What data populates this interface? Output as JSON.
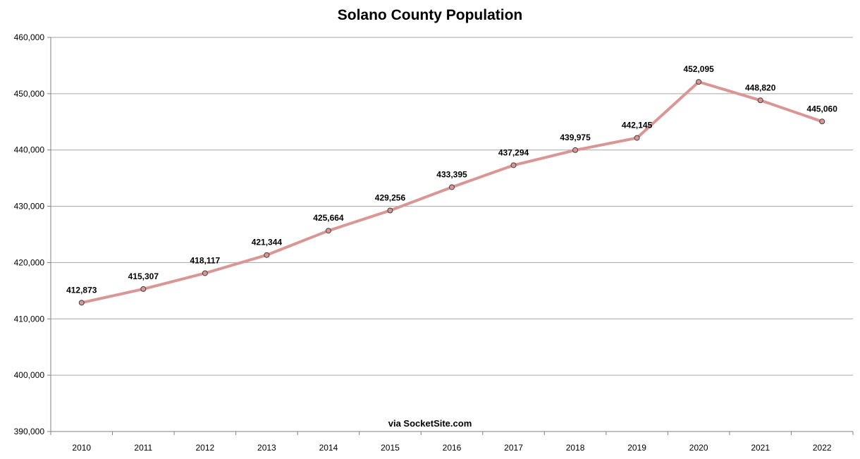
{
  "chart_data": {
    "type": "line",
    "title": "Solano County Population",
    "source_note": "via SocketSite.com",
    "categories": [
      "2010",
      "2011",
      "2012",
      "2013",
      "2014",
      "2015",
      "2016",
      "2017",
      "2018",
      "2019",
      "2020",
      "2021",
      "2022"
    ],
    "series": [
      {
        "values": [
          412873,
          415307,
          418117,
          421344,
          425664,
          429256,
          433395,
          437294,
          439975,
          442145,
          452095,
          448820,
          445060
        ],
        "data_labels": [
          "412,873",
          "415,307",
          "418,117",
          "421,344",
          "425,664",
          "429,256",
          "433,395",
          "437,294",
          "439,975",
          "442,145",
          "452,095",
          "448,820",
          "445,060"
        ],
        "color": "#d99694"
      }
    ],
    "ylim": [
      390000,
      460000
    ],
    "y_ticks": [
      390000,
      400000,
      410000,
      420000,
      430000,
      440000,
      450000,
      460000
    ],
    "y_tick_labels": [
      "390,000",
      "400,000",
      "410,000",
      "420,000",
      "430,000",
      "440,000",
      "450,000",
      "460,000"
    ],
    "grid": true,
    "gridline_color": "#a6a6a6",
    "marker_fill": "#d99694",
    "marker_stroke": "#404040"
  }
}
